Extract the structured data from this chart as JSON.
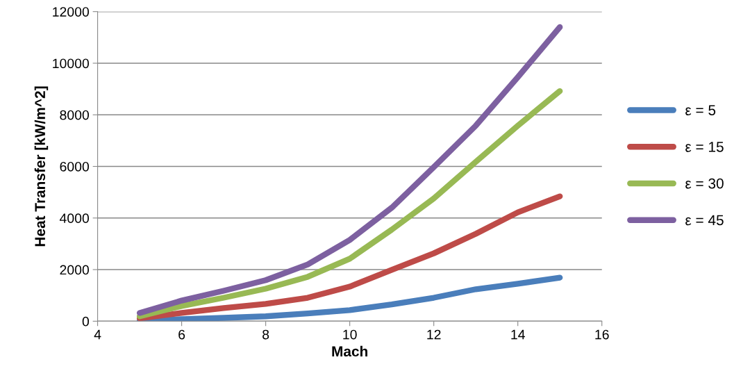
{
  "chart_data": {
    "type": "line",
    "xlabel": "Mach",
    "ylabel": "Heat Transfer [kW/m^2]",
    "x": [
      5,
      6,
      7,
      8,
      9,
      10,
      11,
      12,
      13,
      14,
      15
    ],
    "series": [
      {
        "name": "ε = 5",
        "color": "#4a7ebb",
        "values": [
          20,
          80,
          130,
          190,
          300,
          430,
          650,
          910,
          1240,
          1450,
          1690
        ]
      },
      {
        "name": "ε = 15",
        "color": "#be4b48",
        "values": [
          110,
          320,
          510,
          670,
          910,
          1340,
          1990,
          2630,
          3390,
          4220,
          4840
        ]
      },
      {
        "name": "ε = 30",
        "color": "#98b954",
        "values": [
          190,
          590,
          910,
          1260,
          1720,
          2420,
          3550,
          4760,
          6180,
          7580,
          8920
        ]
      },
      {
        "name": "ε = 45",
        "color": "#7d60a0",
        "values": [
          320,
          800,
          1180,
          1590,
          2200,
          3150,
          4400,
          5970,
          7580,
          9460,
          11400
        ]
      }
    ],
    "xlim": [
      4,
      16
    ],
    "xticks": [
      4,
      6,
      8,
      10,
      12,
      14,
      16
    ],
    "ylim": [
      0,
      12000
    ],
    "yticks": [
      0,
      2000,
      4000,
      6000,
      8000,
      10000,
      12000
    ],
    "grid": "y",
    "legend": "right",
    "marker": "none",
    "line_style": "solid"
  }
}
